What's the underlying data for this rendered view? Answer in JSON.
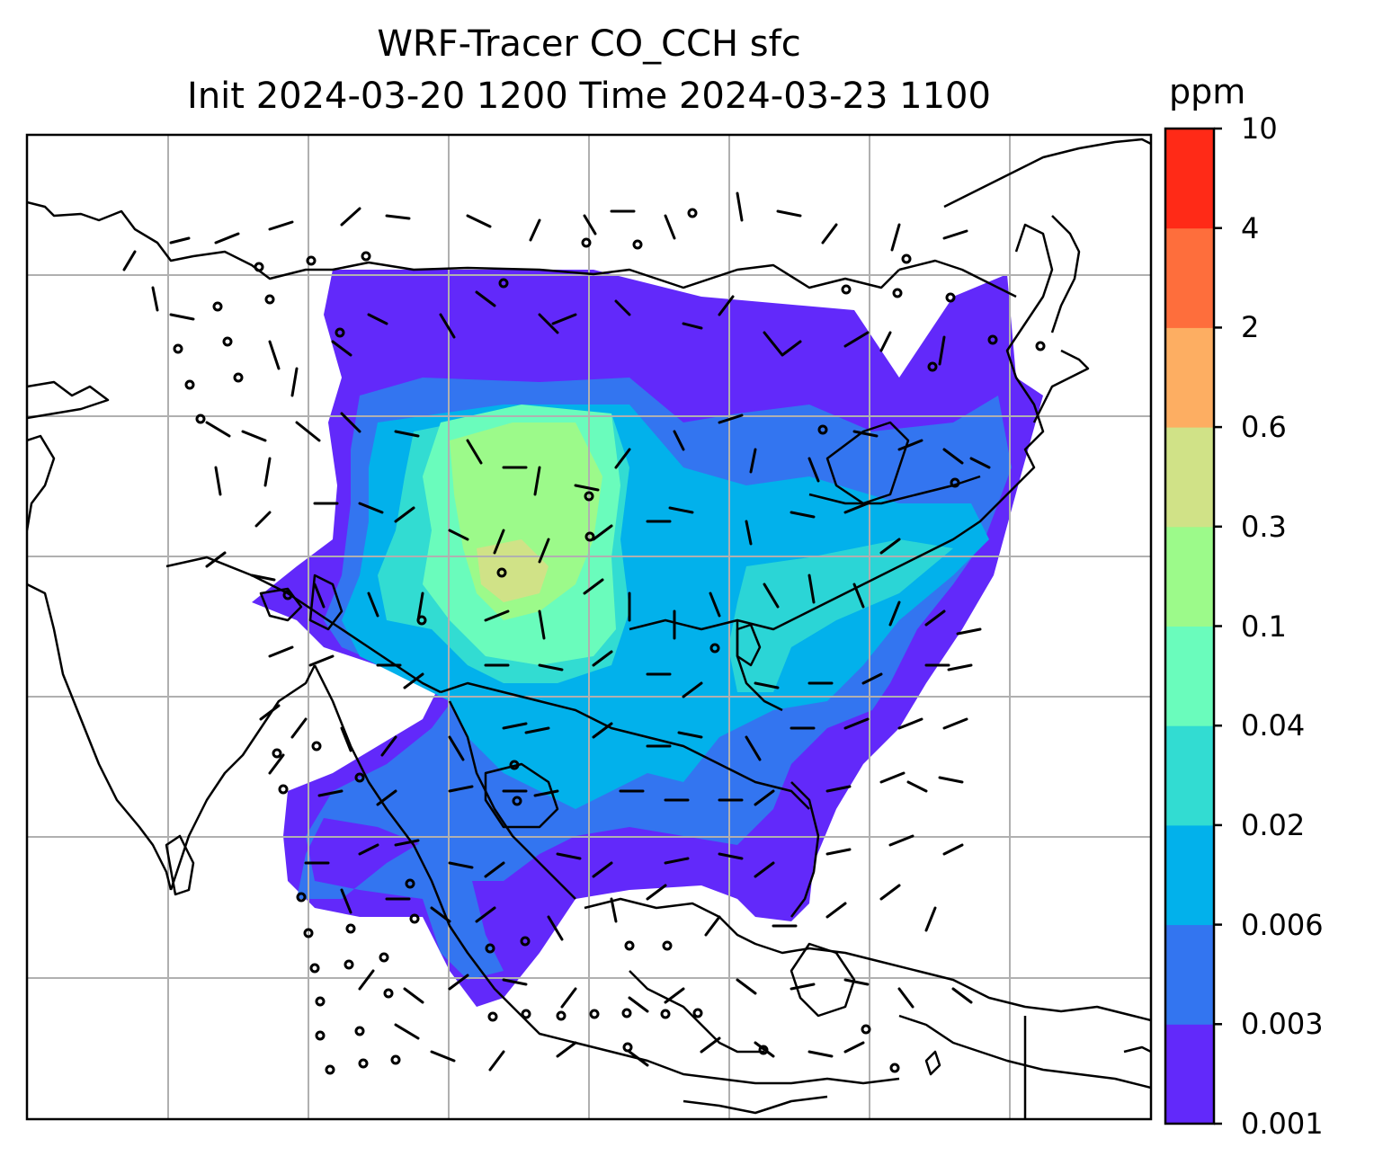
{
  "title_line1": "WRF-Tracer CO_CCH sfc",
  "title_line2": "Init 2024-03-20 1200 Time 2024-03-23 1100",
  "colorbar": {
    "unit": "ppm",
    "levels": [
      "0.001",
      "0.003",
      "0.006",
      "0.02",
      "0.04",
      "0.1",
      "0.3",
      "0.6",
      "2",
      "4",
      "10"
    ],
    "colors": [
      "#6229fa",
      "#3375f0",
      "#02b1eb",
      "#32dcd2",
      "#6afcbc",
      "#9cfa8a",
      "#d0e287",
      "#fdae62",
      "#fe6e3c",
      "#ff2a17"
    ]
  },
  "map": {
    "grid": "on",
    "grid_color": "#b0b0b0",
    "field_description_colors": {
      "low": "#6229fa",
      "mid": "#02b1eb",
      "high": "#9cfa8a",
      "peak": "#d0e287"
    }
  }
}
